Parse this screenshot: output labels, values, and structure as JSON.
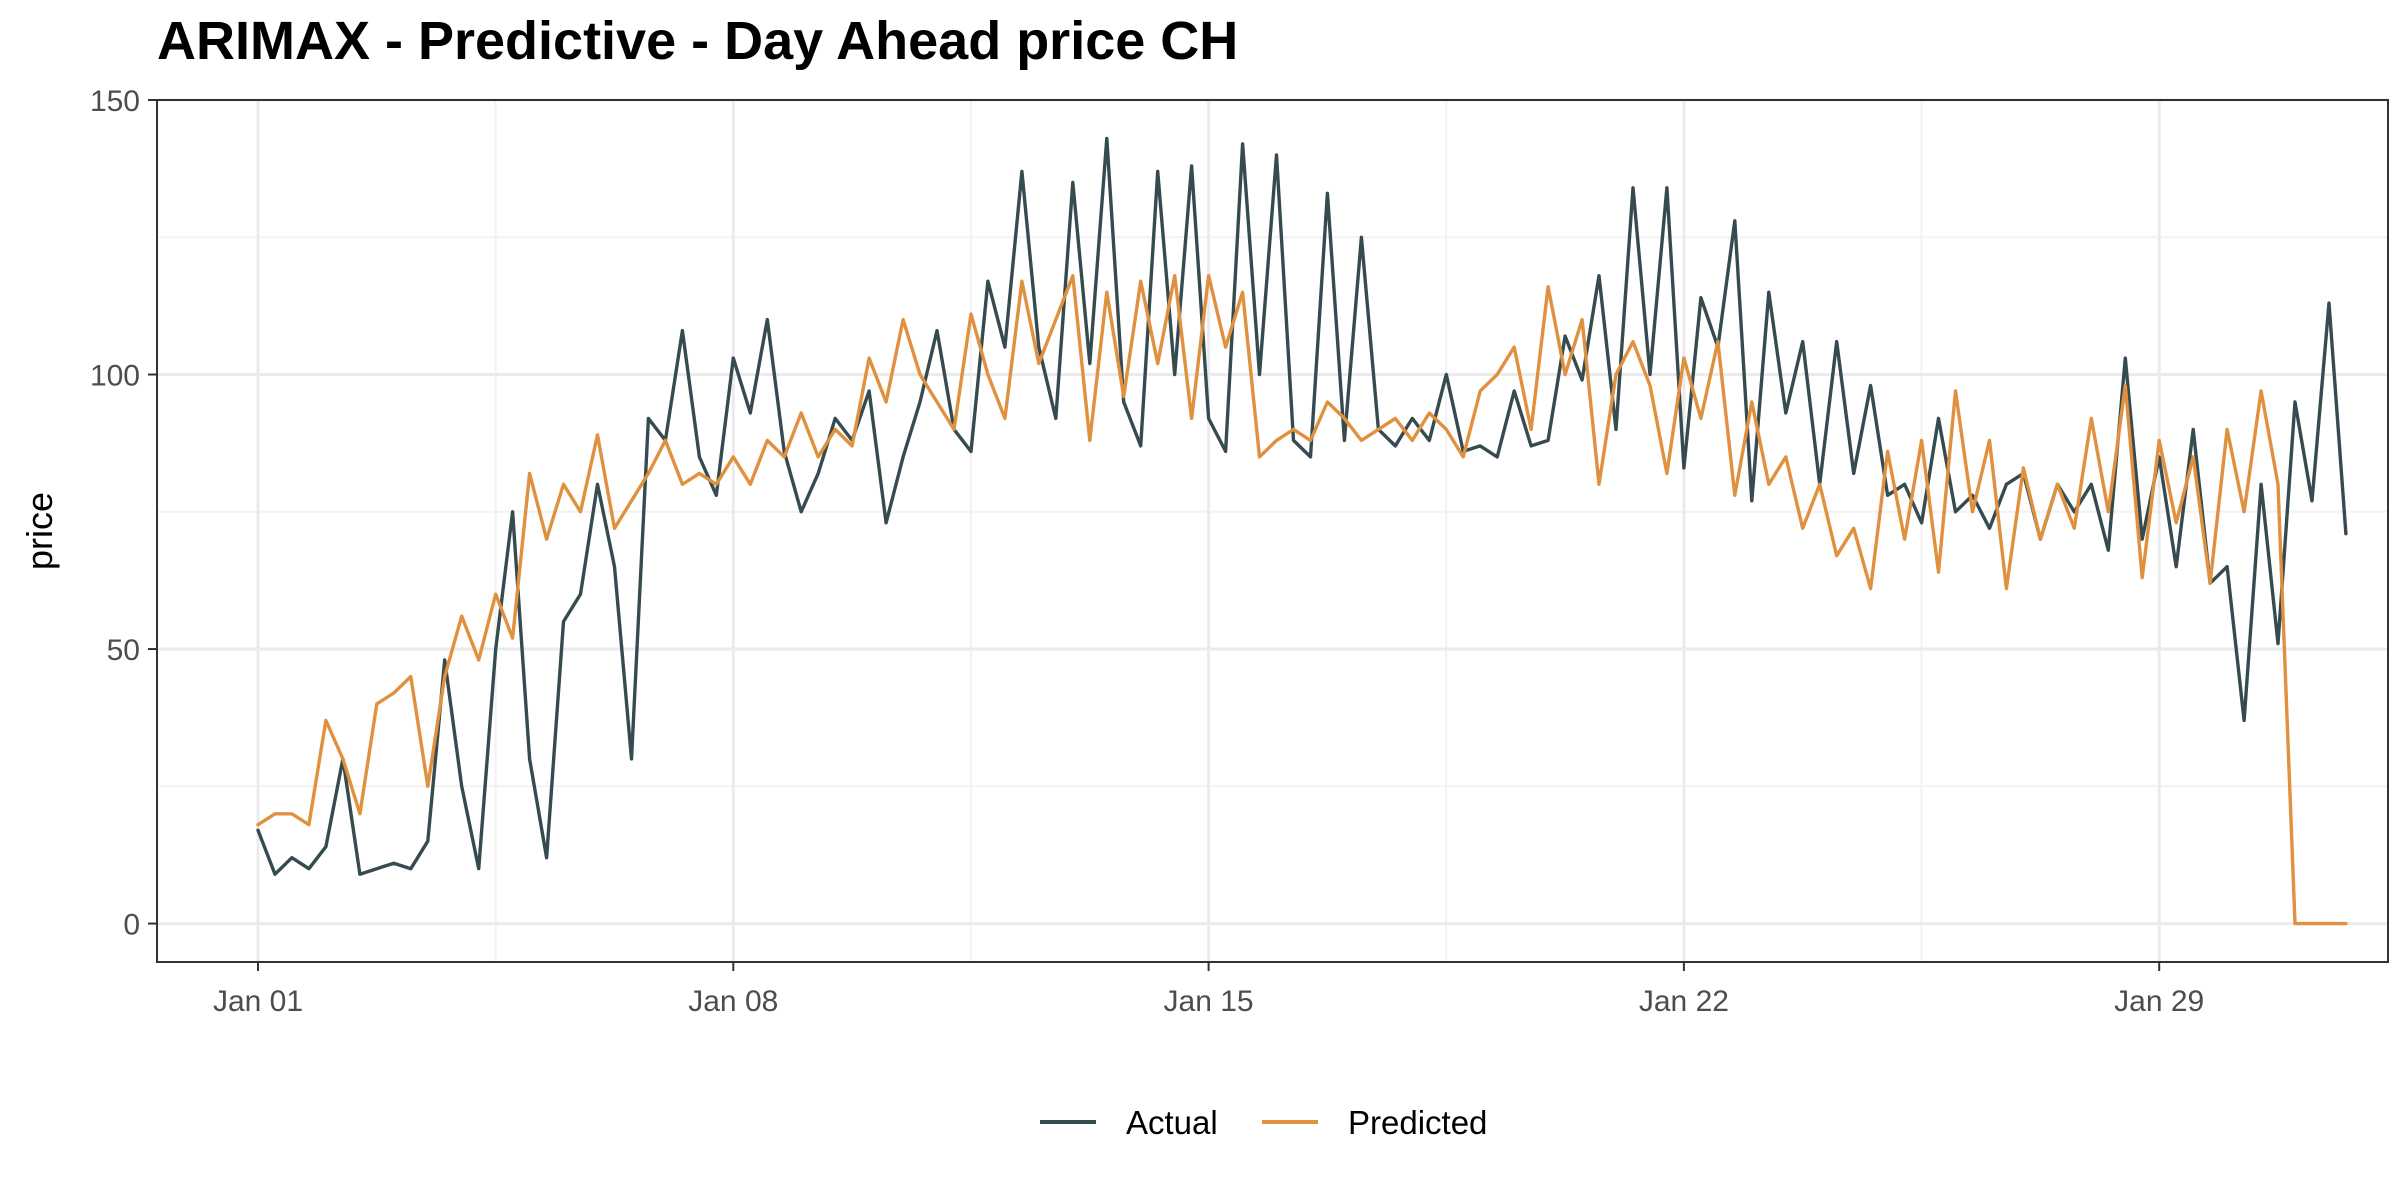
{
  "chart_data": {
    "type": "line",
    "title": "ARIMAX - Predictive - Day Ahead price CH",
    "xlabel": "",
    "ylabel": "price",
    "x_ticks": [
      "Jan 01",
      "Jan 08",
      "Jan 15",
      "Jan 22",
      "Jan 29"
    ],
    "y_ticks": [
      0,
      50,
      100,
      150
    ],
    "ylim": [
      -7,
      150
    ],
    "xlim": [
      "2023-01-01T00:00",
      "2023-01-31T00:00"
    ],
    "grid": true,
    "legend_position": "bottom",
    "series": [
      {
        "name": "Actual",
        "color": "#364b50",
        "points": [
          [
            "2023-01-01T00:00",
            17
          ],
          [
            "2023-01-01T06:00",
            9
          ],
          [
            "2023-01-01T12:00",
            12
          ],
          [
            "2023-01-01T18:00",
            10
          ],
          [
            "2023-01-02T00:00",
            14
          ],
          [
            "2023-01-02T06:00",
            30
          ],
          [
            "2023-01-02T12:00",
            9
          ],
          [
            "2023-01-02T18:00",
            10
          ],
          [
            "2023-01-03T00:00",
            11
          ],
          [
            "2023-01-03T06:00",
            10
          ],
          [
            "2023-01-03T12:00",
            15
          ],
          [
            "2023-01-03T18:00",
            48
          ],
          [
            "2023-01-04T00:00",
            25
          ],
          [
            "2023-01-04T06:00",
            10
          ],
          [
            "2023-01-04T12:00",
            50
          ],
          [
            "2023-01-04T18:00",
            75
          ],
          [
            "2023-01-05T00:00",
            30
          ],
          [
            "2023-01-05T06:00",
            12
          ],
          [
            "2023-01-05T12:00",
            55
          ],
          [
            "2023-01-05T18:00",
            60
          ],
          [
            "2023-01-06T00:00",
            80
          ],
          [
            "2023-01-06T06:00",
            65
          ],
          [
            "2023-01-06T12:00",
            30
          ],
          [
            "2023-01-06T18:00",
            92
          ],
          [
            "2023-01-07T00:00",
            88
          ],
          [
            "2023-01-07T06:00",
            108
          ],
          [
            "2023-01-07T12:00",
            85
          ],
          [
            "2023-01-07T18:00",
            78
          ],
          [
            "2023-01-08T00:00",
            103
          ],
          [
            "2023-01-08T06:00",
            93
          ],
          [
            "2023-01-08T12:00",
            110
          ],
          [
            "2023-01-08T18:00",
            86
          ],
          [
            "2023-01-09T00:00",
            75
          ],
          [
            "2023-01-09T06:00",
            82
          ],
          [
            "2023-01-09T12:00",
            92
          ],
          [
            "2023-01-09T18:00",
            88
          ],
          [
            "2023-01-10T00:00",
            97
          ],
          [
            "2023-01-10T06:00",
            73
          ],
          [
            "2023-01-10T12:00",
            85
          ],
          [
            "2023-01-10T18:00",
            95
          ],
          [
            "2023-01-11T00:00",
            108
          ],
          [
            "2023-01-11T06:00",
            90
          ],
          [
            "2023-01-11T12:00",
            86
          ],
          [
            "2023-01-11T18:00",
            117
          ],
          [
            "2023-01-12T00:00",
            105
          ],
          [
            "2023-01-12T06:00",
            137
          ],
          [
            "2023-01-12T12:00",
            105
          ],
          [
            "2023-01-12T18:00",
            92
          ],
          [
            "2023-01-13T00:00",
            135
          ],
          [
            "2023-01-13T06:00",
            102
          ],
          [
            "2023-01-13T12:00",
            143
          ],
          [
            "2023-01-13T18:00",
            95
          ],
          [
            "2023-01-14T00:00",
            87
          ],
          [
            "2023-01-14T06:00",
            137
          ],
          [
            "2023-01-14T12:00",
            100
          ],
          [
            "2023-01-14T18:00",
            138
          ],
          [
            "2023-01-15T00:00",
            92
          ],
          [
            "2023-01-15T06:00",
            86
          ],
          [
            "2023-01-15T12:00",
            142
          ],
          [
            "2023-01-15T18:00",
            100
          ],
          [
            "2023-01-16T00:00",
            140
          ],
          [
            "2023-01-16T06:00",
            88
          ],
          [
            "2023-01-16T12:00",
            85
          ],
          [
            "2023-01-16T18:00",
            133
          ],
          [
            "2023-01-17T00:00",
            88
          ],
          [
            "2023-01-17T06:00",
            125
          ],
          [
            "2023-01-17T12:00",
            90
          ],
          [
            "2023-01-17T18:00",
            87
          ],
          [
            "2023-01-18T00:00",
            92
          ],
          [
            "2023-01-18T06:00",
            88
          ],
          [
            "2023-01-18T12:00",
            100
          ],
          [
            "2023-01-18T18:00",
            86
          ],
          [
            "2023-01-19T00:00",
            87
          ],
          [
            "2023-01-19T06:00",
            85
          ],
          [
            "2023-01-19T12:00",
            97
          ],
          [
            "2023-01-19T18:00",
            87
          ],
          [
            "2023-01-20T00:00",
            88
          ],
          [
            "2023-01-20T06:00",
            107
          ],
          [
            "2023-01-20T12:00",
            99
          ],
          [
            "2023-01-20T18:00",
            118
          ],
          [
            "2023-01-21T00:00",
            90
          ],
          [
            "2023-01-21T06:00",
            134
          ],
          [
            "2023-01-21T12:00",
            100
          ],
          [
            "2023-01-21T18:00",
            134
          ],
          [
            "2023-01-22T00:00",
            83
          ],
          [
            "2023-01-22T06:00",
            114
          ],
          [
            "2023-01-22T12:00",
            105
          ],
          [
            "2023-01-22T18:00",
            128
          ],
          [
            "2023-01-23T00:00",
            77
          ],
          [
            "2023-01-23T06:00",
            115
          ],
          [
            "2023-01-23T12:00",
            93
          ],
          [
            "2023-01-23T18:00",
            106
          ],
          [
            "2023-01-24T00:00",
            80
          ],
          [
            "2023-01-24T06:00",
            106
          ],
          [
            "2023-01-24T12:00",
            82
          ],
          [
            "2023-01-24T18:00",
            98
          ],
          [
            "2023-01-25T00:00",
            78
          ],
          [
            "2023-01-25T06:00",
            80
          ],
          [
            "2023-01-25T12:00",
            73
          ],
          [
            "2023-01-25T18:00",
            92
          ],
          [
            "2023-01-26T00:00",
            75
          ],
          [
            "2023-01-26T06:00",
            78
          ],
          [
            "2023-01-26T12:00",
            72
          ],
          [
            "2023-01-26T18:00",
            80
          ],
          [
            "2023-01-27T00:00",
            82
          ],
          [
            "2023-01-27T06:00",
            70
          ],
          [
            "2023-01-27T12:00",
            80
          ],
          [
            "2023-01-27T18:00",
            75
          ],
          [
            "2023-01-28T00:00",
            80
          ],
          [
            "2023-01-28T06:00",
            68
          ],
          [
            "2023-01-28T12:00",
            103
          ],
          [
            "2023-01-28T18:00",
            70
          ],
          [
            "2023-01-29T00:00",
            85
          ],
          [
            "2023-01-29T06:00",
            65
          ],
          [
            "2023-01-29T12:00",
            90
          ],
          [
            "2023-01-29T18:00",
            62
          ],
          [
            "2023-01-30T00:00",
            65
          ],
          [
            "2023-01-30T06:00",
            37
          ],
          [
            "2023-01-30T12:00",
            80
          ],
          [
            "2023-01-30T18:00",
            51
          ],
          [
            "2023-01-31T00:00",
            95
          ],
          [
            "2023-01-31T06:00",
            77
          ],
          [
            "2023-01-31T12:00",
            113
          ],
          [
            "2023-01-31T18:00",
            71
          ]
        ]
      },
      {
        "name": "Predicted",
        "color": "#e0913f",
        "points": [
          [
            "2023-01-01T00:00",
            18
          ],
          [
            "2023-01-01T06:00",
            20
          ],
          [
            "2023-01-01T12:00",
            20
          ],
          [
            "2023-01-01T18:00",
            18
          ],
          [
            "2023-01-02T00:00",
            37
          ],
          [
            "2023-01-02T06:00",
            30
          ],
          [
            "2023-01-02T12:00",
            20
          ],
          [
            "2023-01-02T18:00",
            40
          ],
          [
            "2023-01-03T00:00",
            42
          ],
          [
            "2023-01-03T06:00",
            45
          ],
          [
            "2023-01-03T12:00",
            25
          ],
          [
            "2023-01-03T18:00",
            45
          ],
          [
            "2023-01-04T00:00",
            56
          ],
          [
            "2023-01-04T06:00",
            48
          ],
          [
            "2023-01-04T12:00",
            60
          ],
          [
            "2023-01-04T18:00",
            52
          ],
          [
            "2023-01-05T00:00",
            82
          ],
          [
            "2023-01-05T06:00",
            70
          ],
          [
            "2023-01-05T12:00",
            80
          ],
          [
            "2023-01-05T18:00",
            75
          ],
          [
            "2023-01-06T00:00",
            89
          ],
          [
            "2023-01-06T06:00",
            72
          ],
          [
            "2023-01-06T12:00",
            77
          ],
          [
            "2023-01-06T18:00",
            82
          ],
          [
            "2023-01-07T00:00",
            88
          ],
          [
            "2023-01-07T06:00",
            80
          ],
          [
            "2023-01-07T12:00",
            82
          ],
          [
            "2023-01-07T18:00",
            80
          ],
          [
            "2023-01-08T00:00",
            85
          ],
          [
            "2023-01-08T06:00",
            80
          ],
          [
            "2023-01-08T12:00",
            88
          ],
          [
            "2023-01-08T18:00",
            85
          ],
          [
            "2023-01-09T00:00",
            93
          ],
          [
            "2023-01-09T06:00",
            85
          ],
          [
            "2023-01-09T12:00",
            90
          ],
          [
            "2023-01-09T18:00",
            87
          ],
          [
            "2023-01-10T00:00",
            103
          ],
          [
            "2023-01-10T06:00",
            95
          ],
          [
            "2023-01-10T12:00",
            110
          ],
          [
            "2023-01-10T18:00",
            100
          ],
          [
            "2023-01-11T00:00",
            95
          ],
          [
            "2023-01-11T06:00",
            90
          ],
          [
            "2023-01-11T12:00",
            111
          ],
          [
            "2023-01-11T18:00",
            100
          ],
          [
            "2023-01-12T00:00",
            92
          ],
          [
            "2023-01-12T06:00",
            117
          ],
          [
            "2023-01-12T12:00",
            102
          ],
          [
            "2023-01-12T18:00",
            110
          ],
          [
            "2023-01-13T00:00",
            118
          ],
          [
            "2023-01-13T06:00",
            88
          ],
          [
            "2023-01-13T12:00",
            115
          ],
          [
            "2023-01-13T18:00",
            96
          ],
          [
            "2023-01-14T00:00",
            117
          ],
          [
            "2023-01-14T06:00",
            102
          ],
          [
            "2023-01-14T12:00",
            118
          ],
          [
            "2023-01-14T18:00",
            92
          ],
          [
            "2023-01-15T00:00",
            118
          ],
          [
            "2023-01-15T06:00",
            105
          ],
          [
            "2023-01-15T12:00",
            115
          ],
          [
            "2023-01-15T18:00",
            85
          ],
          [
            "2023-01-16T00:00",
            88
          ],
          [
            "2023-01-16T06:00",
            90
          ],
          [
            "2023-01-16T12:00",
            88
          ],
          [
            "2023-01-16T18:00",
            95
          ],
          [
            "2023-01-17T00:00",
            92
          ],
          [
            "2023-01-17T06:00",
            88
          ],
          [
            "2023-01-17T12:00",
            90
          ],
          [
            "2023-01-17T18:00",
            92
          ],
          [
            "2023-01-18T00:00",
            88
          ],
          [
            "2023-01-18T06:00",
            93
          ],
          [
            "2023-01-18T12:00",
            90
          ],
          [
            "2023-01-18T18:00",
            85
          ],
          [
            "2023-01-19T00:00",
            97
          ],
          [
            "2023-01-19T06:00",
            100
          ],
          [
            "2023-01-19T12:00",
            105
          ],
          [
            "2023-01-19T18:00",
            90
          ],
          [
            "2023-01-20T00:00",
            116
          ],
          [
            "2023-01-20T06:00",
            100
          ],
          [
            "2023-01-20T12:00",
            110
          ],
          [
            "2023-01-20T18:00",
            80
          ],
          [
            "2023-01-21T00:00",
            100
          ],
          [
            "2023-01-21T06:00",
            106
          ],
          [
            "2023-01-21T12:00",
            98
          ],
          [
            "2023-01-21T18:00",
            82
          ],
          [
            "2023-01-22T00:00",
            103
          ],
          [
            "2023-01-22T06:00",
            92
          ],
          [
            "2023-01-22T12:00",
            106
          ],
          [
            "2023-01-22T18:00",
            78
          ],
          [
            "2023-01-23T00:00",
            95
          ],
          [
            "2023-01-23T06:00",
            80
          ],
          [
            "2023-01-23T12:00",
            85
          ],
          [
            "2023-01-23T18:00",
            72
          ],
          [
            "2023-01-24T00:00",
            80
          ],
          [
            "2023-01-24T06:00",
            67
          ],
          [
            "2023-01-24T12:00",
            72
          ],
          [
            "2023-01-24T18:00",
            61
          ],
          [
            "2023-01-25T00:00",
            86
          ],
          [
            "2023-01-25T06:00",
            70
          ],
          [
            "2023-01-25T12:00",
            88
          ],
          [
            "2023-01-25T18:00",
            64
          ],
          [
            "2023-01-26T00:00",
            97
          ],
          [
            "2023-01-26T06:00",
            75
          ],
          [
            "2023-01-26T12:00",
            88
          ],
          [
            "2023-01-26T18:00",
            61
          ],
          [
            "2023-01-27T00:00",
            83
          ],
          [
            "2023-01-27T06:00",
            70
          ],
          [
            "2023-01-27T12:00",
            80
          ],
          [
            "2023-01-27T18:00",
            72
          ],
          [
            "2023-01-28T00:00",
            92
          ],
          [
            "2023-01-28T06:00",
            75
          ],
          [
            "2023-01-28T12:00",
            98
          ],
          [
            "2023-01-28T18:00",
            63
          ],
          [
            "2023-01-29T00:00",
            88
          ],
          [
            "2023-01-29T06:00",
            73
          ],
          [
            "2023-01-29T12:00",
            85
          ],
          [
            "2023-01-29T18:00",
            62
          ],
          [
            "2023-01-30T00:00",
            90
          ],
          [
            "2023-01-30T06:00",
            75
          ],
          [
            "2023-01-30T12:00",
            97
          ],
          [
            "2023-01-30T18:00",
            80
          ],
          [
            "2023-01-31T00:00",
            0
          ],
          [
            "2023-01-31T06:00",
            0
          ],
          [
            "2023-01-31T12:00",
            0
          ],
          [
            "2023-01-31T18:00",
            0
          ]
        ]
      }
    ]
  }
}
